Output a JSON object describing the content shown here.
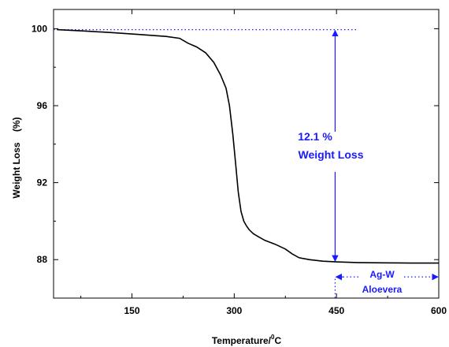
{
  "chart_data": {
    "type": "line",
    "title": "",
    "xlabel": "Temperature/",
    "xlabel_sup": "0",
    "xlabel_unit": "C",
    "ylabel": "Weight Loss",
    "ylabel_unit": "(%)",
    "xlim": [
      35,
      600
    ],
    "ylim": [
      86.0,
      101.0
    ],
    "xticks": [
      150,
      300,
      450,
      600
    ],
    "yticks": [
      88,
      92,
      96,
      100
    ],
    "grid": false,
    "series": [
      {
        "name": "Ag-W Aloevera",
        "color": "#000000",
        "x": [
          40,
          80,
          120,
          160,
          200,
          220,
          232,
          245,
          258,
          270,
          280,
          288,
          293,
          298,
          302,
          306,
          310,
          314,
          318,
          322,
          328,
          335,
          345,
          360,
          375,
          385,
          395,
          410,
          430,
          450,
          480,
          520,
          560,
          600
        ],
        "y": [
          99.95,
          99.88,
          99.8,
          99.7,
          99.6,
          99.5,
          99.25,
          99.05,
          98.75,
          98.25,
          97.6,
          96.9,
          96.0,
          94.5,
          93.0,
          91.5,
          90.5,
          90.0,
          89.75,
          89.55,
          89.35,
          89.2,
          89.0,
          88.8,
          88.55,
          88.3,
          88.1,
          88.0,
          87.92,
          87.88,
          87.85,
          87.83,
          87.82,
          87.82
        ]
      }
    ],
    "annotations": {
      "reference_y": 99.95,
      "reference_x_end": 482,
      "arrow_x": 448,
      "arrow_top_y": 99.95,
      "arrow_bottom_y": 87.88,
      "loss_value": "12.1 %",
      "loss_label": "Weight Loss",
      "sample_label_line1": "Ag-W",
      "sample_label_line2": "Aloevera",
      "sample_arrow_y": 87.1,
      "sample_arrow_x_start": 448,
      "sample_arrow_x_end": 600,
      "annotation_color": "#1a1aff"
    }
  }
}
